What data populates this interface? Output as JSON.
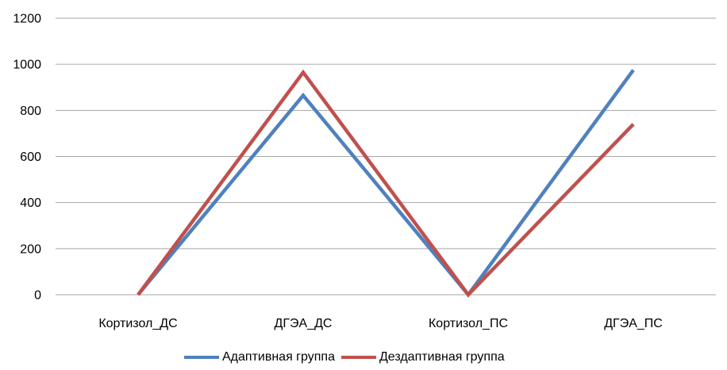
{
  "chart_data": {
    "type": "line",
    "categories": [
      "Кортизол_ДС",
      "ДГЭА_ДС",
      "Кортизол_ПС",
      "ДГЭА_ПС"
    ],
    "series": [
      {
        "name": "Адаптивная группа",
        "values": [
          0,
          865,
          0,
          975
        ],
        "color": "#4F81BD"
      },
      {
        "name": "Дездаптивная группа",
        "values": [
          0,
          965,
          0,
          740
        ],
        "color": "#C0504D"
      }
    ],
    "yticks": [
      0,
      200,
      400,
      600,
      800,
      1000,
      1200
    ],
    "ylim": [
      0,
      1200
    ],
    "grid": true,
    "legend_position": "bottom"
  }
}
